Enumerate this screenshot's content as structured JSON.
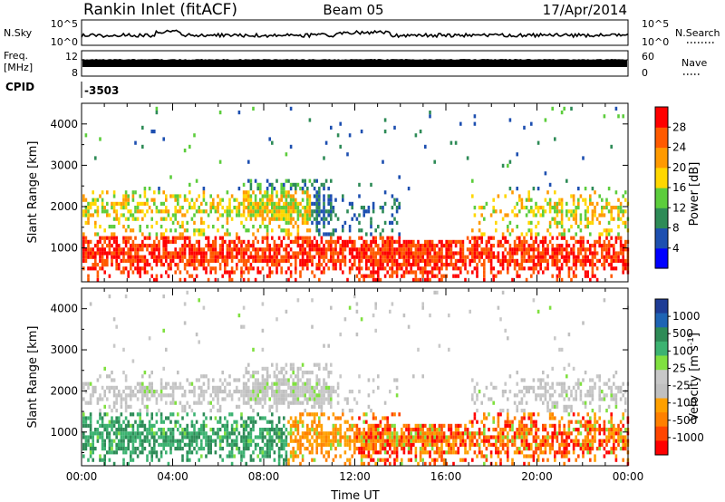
{
  "header": {
    "station": "Rankin Inlet (fitACF)",
    "beam": "Beam 05",
    "date": "17/Apr/2014"
  },
  "top_panels": {
    "nsky_label": "N.Sky",
    "nsearch_label": "N.Search",
    "nsky_ticks": [
      "10^5",
      "10^0"
    ],
    "nsearch_ticks": [
      "10^5",
      "10^0"
    ],
    "freq_label_1": "Freq.",
    "freq_label_2": "[MHz]",
    "freq_ticks": [
      "12",
      "8"
    ],
    "nave_label": "Nave",
    "nave_ticks": [
      "60",
      "0"
    ],
    "cpid_label": "CPID",
    "cpid_value": "-3503"
  },
  "colors": {
    "power": [
      "#0000ff",
      "#1d4fb0",
      "#2e8b57",
      "#5ccd3c",
      "#ffd700",
      "#ff9a00",
      "#ff5a00",
      "#ff0000"
    ],
    "velocity": [
      "#ff0000",
      "#ff4500",
      "#ff8000",
      "#ffa000",
      "#c0c0c0",
      "#c8c8c8",
      "#80e040",
      "#3cb371",
      "#2e8b57",
      "#1e64b4",
      "#1e3c96"
    ]
  },
  "chart_data": [
    {
      "type": "heatmap",
      "name": "power",
      "ylabel": "Slant Range [km]",
      "ylim": [
        180,
        4500
      ],
      "yticks": [
        "1000",
        "2000",
        "3000",
        "4000"
      ],
      "xlim": [
        0,
        24
      ],
      "colorbar_label": "Power [dB]",
      "colorbar_ticks": [
        "4",
        "8",
        "12",
        "16",
        "20",
        "24",
        "28"
      ],
      "colorbar_range": [
        0,
        32
      ]
    },
    {
      "type": "heatmap",
      "name": "velocity",
      "ylabel": "Slant Range [km]",
      "ylim": [
        180,
        4500
      ],
      "yticks": [
        "1000",
        "2000",
        "3000",
        "4000"
      ],
      "xlim": [
        0,
        24
      ],
      "xticks": [
        "00:00",
        "04:00",
        "08:00",
        "12:00",
        "16:00",
        "20:00",
        "00:00"
      ],
      "xlabel": "Time UT",
      "colorbar_label": "Velocity [m s",
      "colorbar_label_sup": "-1",
      "colorbar_label_end": "]",
      "colorbar_ticks": [
        "1000",
        "500",
        "100",
        "25",
        "-25",
        "-100",
        "-500",
        "-1000"
      ]
    }
  ]
}
